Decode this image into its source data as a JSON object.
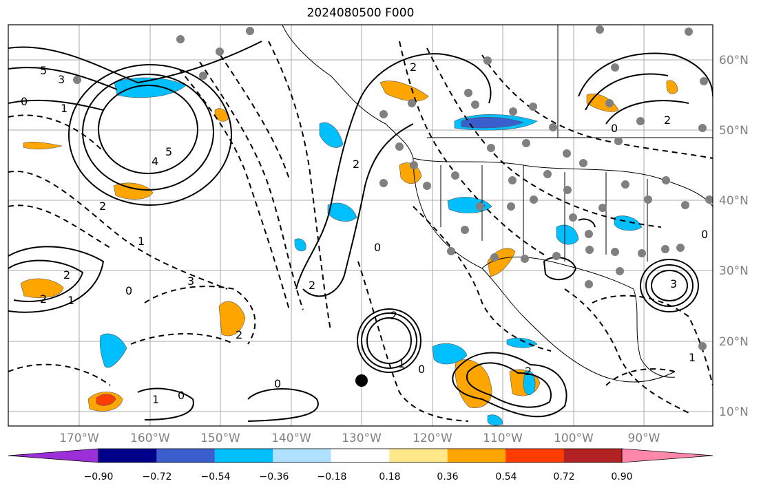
{
  "title": "2024080500 F000",
  "lat_labels": [
    "60°N",
    "50°N",
    "40°N",
    "30°N",
    "20°N",
    "10°N"
  ],
  "lon_labels": [
    "170°W",
    "160°W",
    "150°W",
    "140°W",
    "130°W",
    "120°W",
    "110°W",
    "100°W",
    "90°W"
  ],
  "colorbar": {
    "ticks": [
      "−0.90",
      "−0.72",
      "−0.54",
      "−0.36",
      "−0.18",
      "0.18",
      "0.36",
      "0.54",
      "0.72",
      "0.90"
    ],
    "colors": [
      "#9b30d8",
      "#00008b",
      "#3a5fcd",
      "#00bfff",
      "#b0e2ff",
      "#ffffff",
      "#ffe88a",
      "#ffa500",
      "#ff3d00",
      "#b22222",
      "#ff88aa"
    ]
  },
  "contour_labels": [
    "5",
    "3",
    "0",
    "1",
    "5",
    "4",
    "2",
    "1",
    "2",
    "2",
    "1",
    "0",
    "3",
    "2",
    "2",
    "0",
    "2",
    "2",
    "0",
    "2",
    "1",
    "0",
    "2",
    "0",
    "3",
    "1",
    "0",
    "2",
    "1",
    "0"
  ],
  "colors": {
    "axes": "#000000",
    "grid": "#aaaaaa",
    "dots": "#808080",
    "marker": "#000000"
  }
}
